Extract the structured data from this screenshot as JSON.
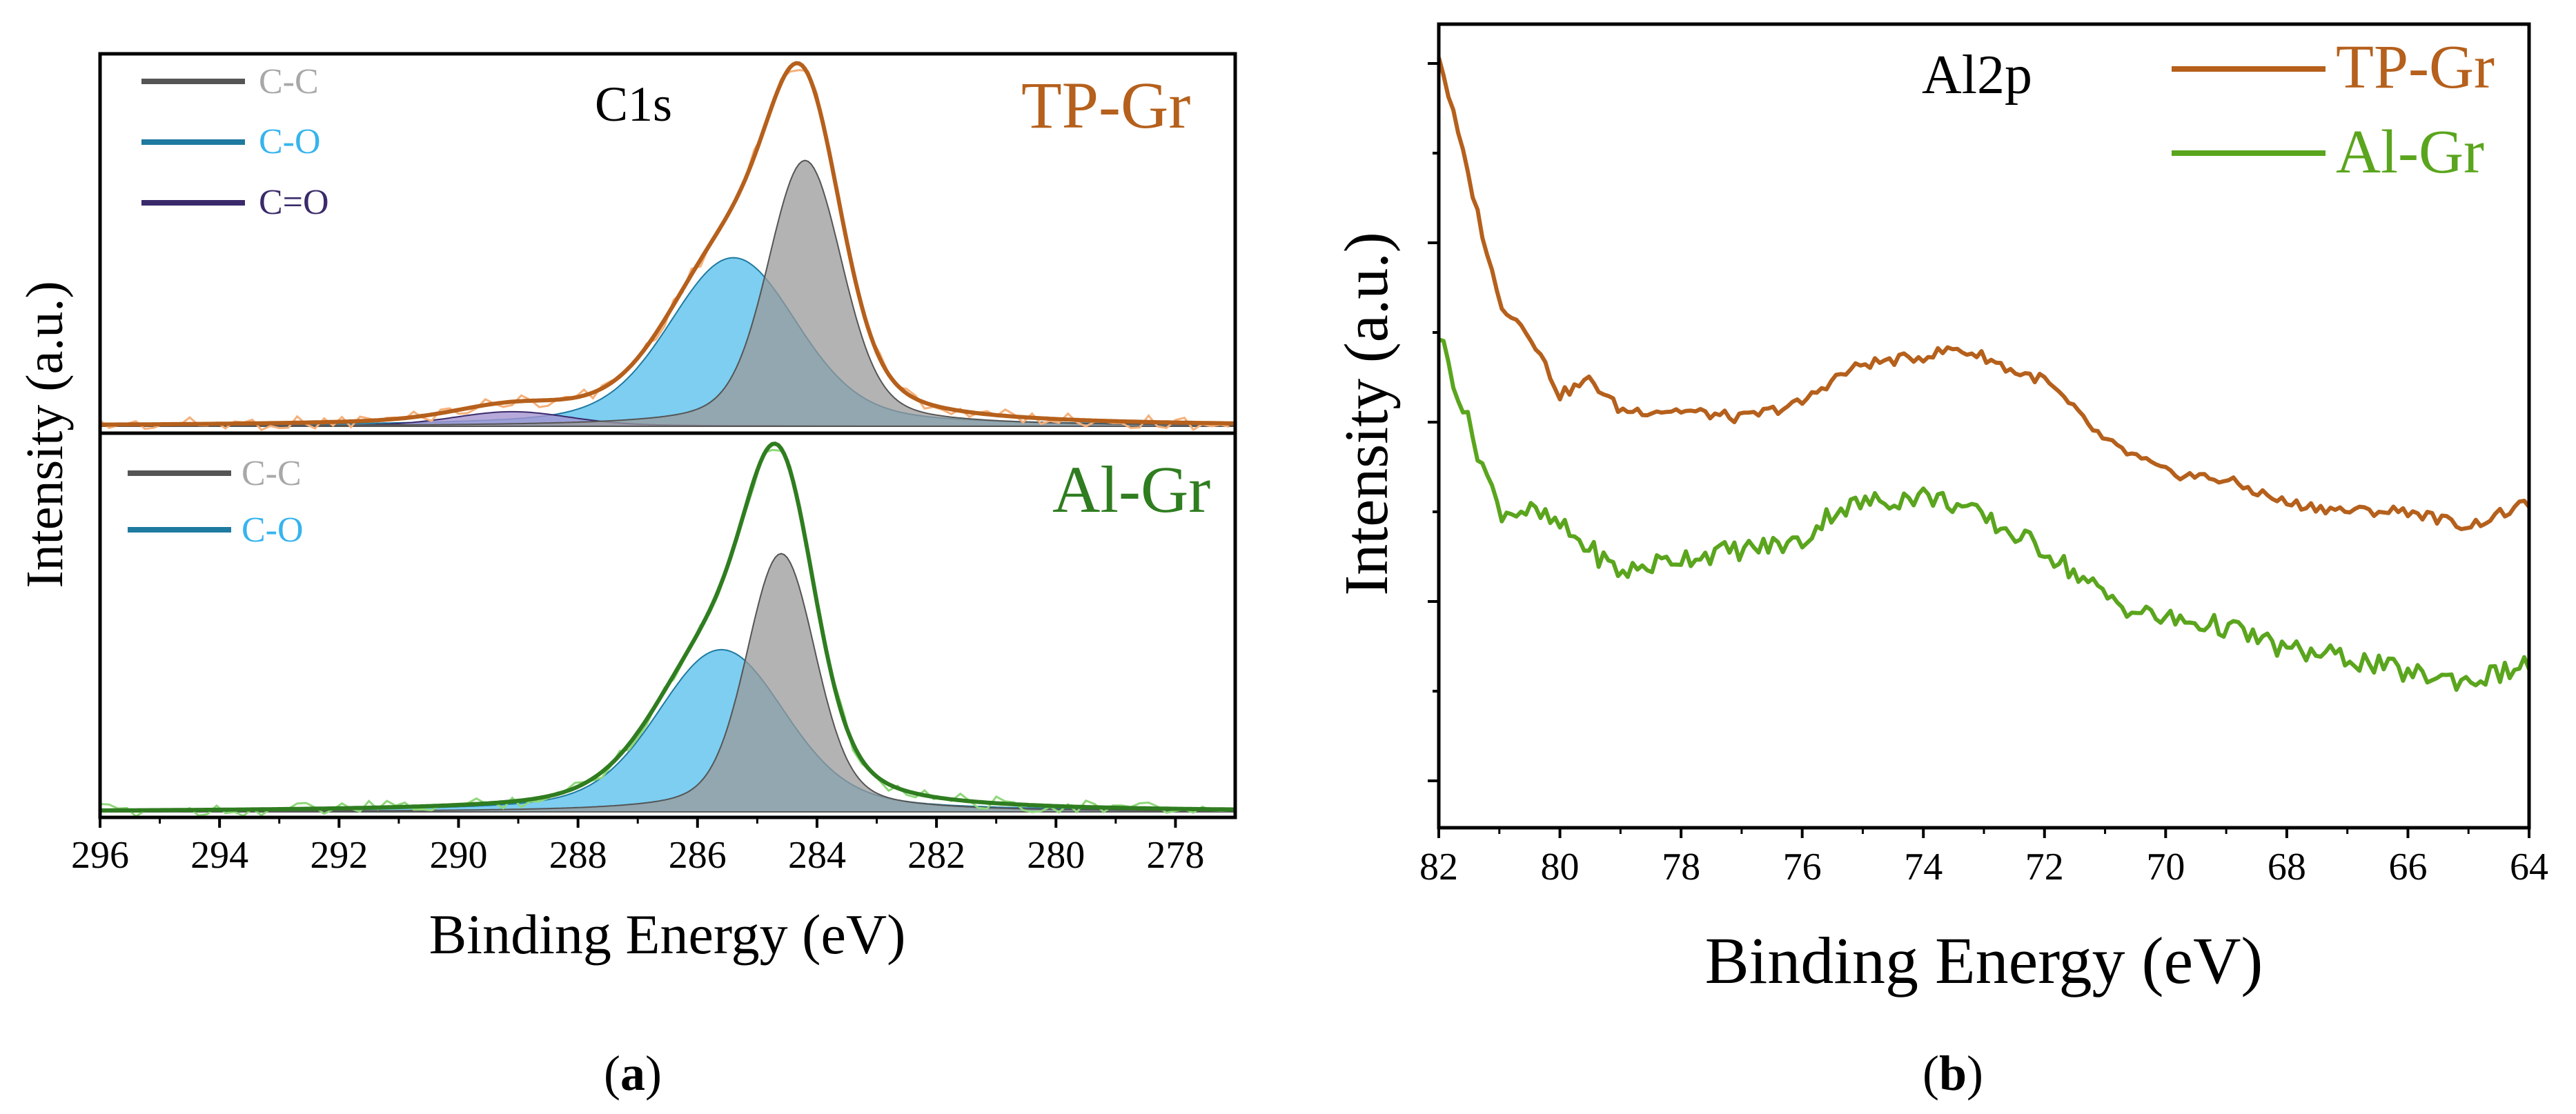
{
  "figure": {
    "panel_a_label_open": "(",
    "panel_a_label_letter": "a",
    "panel_a_label_close": ")",
    "panel_b_label_open": "(",
    "panel_b_label_letter": "b",
    "panel_b_label_close": ")"
  },
  "colors": {
    "tp_gr": "#b5601c",
    "tp_gr_raw": "#f5b07a",
    "al_gr": "#2f7d20",
    "al_gr_raw": "#8fd77a",
    "al_gr_b": "#5aa51d",
    "cc_line": "#555555",
    "cc_fill": "#9a9a9a",
    "co_line": "#1f7aa0",
    "co_fill": "#5cc2ee",
    "co_label": "#36b4ee",
    "cdo_line": "#3b2a6b",
    "cdo_fill": "#a595d2",
    "cc_label_top": "#a8a8a8",
    "cc_label_bot": "#a8a8a8",
    "cdo_label": "#3b2a6b"
  },
  "chart_data": [
    {
      "id": "a",
      "type": "line",
      "title": "C1s",
      "xlabel": "Binding Energy (eV)",
      "ylabel": "Intensity (a.u.)",
      "xlim": [
        296,
        277
      ],
      "x_ticks": [
        296,
        294,
        292,
        290,
        288,
        286,
        284,
        282,
        280,
        278
      ],
      "legend": [
        {
          "name": "C-C",
          "line_color": "#555555",
          "text_color": "#a8a8a8"
        },
        {
          "name": "C-O",
          "line_color": "#1f7aa0",
          "text_color": "#36b4ee"
        },
        {
          "name": "C=O",
          "line_color": "#3b2a6b",
          "text_color": "#3b2a6b"
        }
      ],
      "subpanels": [
        {
          "sample": "TP-Gr",
          "envelope_peak_eV": 284.6,
          "components": [
            {
              "name": "C-C",
              "center_eV": 284.2,
              "fwhm_eV": 1.4,
              "relative_height": 0.82
            },
            {
              "name": "C-O",
              "center_eV": 285.4,
              "fwhm_eV": 2.4,
              "relative_height": 0.52
            },
            {
              "name": "C=O",
              "center_eV": 289.1,
              "fwhm_eV": 2.2,
              "relative_height": 0.045
            }
          ]
        },
        {
          "sample": "Al-Gr",
          "envelope_peak_eV": 284.8,
          "components": [
            {
              "name": "C-C",
              "center_eV": 284.6,
              "fwhm_eV": 1.3,
              "relative_height": 0.78
            },
            {
              "name": "C-O",
              "center_eV": 285.6,
              "fwhm_eV": 2.4,
              "relative_height": 0.49
            }
          ]
        }
      ]
    },
    {
      "id": "b",
      "type": "line",
      "title": "Al2p",
      "xlabel": "Binding Energy (eV)",
      "ylabel": "Intensity (a.u.)",
      "xlim": [
        82,
        64
      ],
      "x_ticks": [
        82,
        80,
        78,
        76,
        74,
        72,
        70,
        68,
        66,
        64
      ],
      "legend": [
        "TP-Gr",
        "Al-Gr"
      ],
      "series": [
        {
          "name": "TP-Gr",
          "x": [
            82,
            81.5,
            81,
            80.5,
            80,
            79.5,
            79,
            78,
            77,
            76,
            75.5,
            75,
            74,
            73.5,
            73,
            72.5,
            72,
            71.5,
            71,
            70.5,
            70,
            69,
            68,
            67,
            66,
            65,
            64
          ],
          "y": [
            6.0,
            5.2,
            4.4,
            4.2,
            3.8,
            3.9,
            3.7,
            3.7,
            3.65,
            3.75,
            3.9,
            4.0,
            4.05,
            4.1,
            4.05,
            3.95,
            3.9,
            3.7,
            3.5,
            3.4,
            3.3,
            3.25,
            3.1,
            3.05,
            3.05,
            2.95,
            3.1
          ]
        },
        {
          "name": "Al-Gr",
          "x": [
            82,
            81.5,
            81,
            80.5,
            80,
            79.5,
            79,
            78,
            77,
            76,
            75.5,
            75,
            74,
            73.5,
            73,
            72.5,
            72,
            71.5,
            71,
            70.5,
            70,
            69,
            68,
            67,
            66,
            65,
            64
          ],
          "y": [
            4.2,
            3.6,
            3.05,
            3.05,
            2.95,
            2.8,
            2.65,
            2.75,
            2.8,
            2.85,
            3.05,
            3.1,
            3.15,
            3.1,
            3.0,
            2.9,
            2.8,
            2.65,
            2.5,
            2.4,
            2.35,
            2.3,
            2.15,
            2.1,
            2.0,
            1.95,
            2.05
          ]
        }
      ]
    }
  ]
}
